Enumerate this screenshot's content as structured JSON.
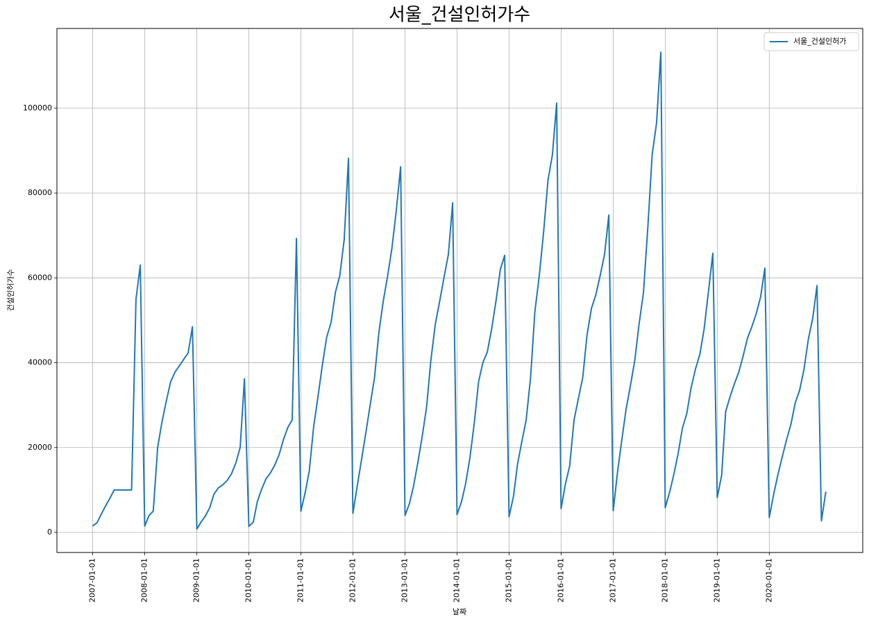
{
  "chart_data": {
    "type": "line",
    "title": "서울_건설인허가수",
    "x_label": "날짜",
    "y_label": "건설인허가수",
    "x": [
      "2007-01-01",
      "2007-02-01",
      "2007-03-01",
      "2007-04-01",
      "2007-05-01",
      "2007-06-01",
      "2007-07-01",
      "2007-08-01",
      "2007-09-01",
      "2007-10-01",
      "2007-11-01",
      "2007-12-01",
      "2008-01-01",
      "2008-02-01",
      "2008-03-01",
      "2008-04-01",
      "2008-05-01",
      "2008-06-01",
      "2008-07-01",
      "2008-08-01",
      "2008-09-01",
      "2008-10-01",
      "2008-11-01",
      "2008-12-01",
      "2009-01-01",
      "2009-02-01",
      "2009-03-01",
      "2009-04-01",
      "2009-05-01",
      "2009-06-01",
      "2009-07-01",
      "2009-08-01",
      "2009-09-01",
      "2009-10-01",
      "2009-11-01",
      "2009-12-01",
      "2010-01-01",
      "2010-02-01",
      "2010-03-01",
      "2010-04-01",
      "2010-05-01",
      "2010-06-01",
      "2010-07-01",
      "2010-08-01",
      "2010-09-01",
      "2010-10-01",
      "2010-11-01",
      "2010-12-01",
      "2011-01-01",
      "2011-02-01",
      "2011-03-01",
      "2011-04-01",
      "2011-05-01",
      "2011-06-01",
      "2011-07-01",
      "2011-08-01",
      "2011-09-01",
      "2011-10-01",
      "2011-11-01",
      "2011-12-01",
      "2012-01-01",
      "2012-02-01",
      "2012-03-01",
      "2012-04-01",
      "2012-05-01",
      "2012-06-01",
      "2012-07-01",
      "2012-08-01",
      "2012-09-01",
      "2012-10-01",
      "2012-11-01",
      "2012-12-01",
      "2013-01-01",
      "2013-02-01",
      "2013-03-01",
      "2013-04-01",
      "2013-05-01",
      "2013-06-01",
      "2013-07-01",
      "2013-08-01",
      "2013-09-01",
      "2013-10-01",
      "2013-11-01",
      "2013-12-01",
      "2014-01-01",
      "2014-02-01",
      "2014-03-01",
      "2014-04-01",
      "2014-05-01",
      "2014-06-01",
      "2014-07-01",
      "2014-08-01",
      "2014-09-01",
      "2014-10-01",
      "2014-11-01",
      "2014-12-01",
      "2015-01-01",
      "2015-02-01",
      "2015-03-01",
      "2015-04-01",
      "2015-05-01",
      "2015-06-01",
      "2015-07-01",
      "2015-08-01",
      "2015-09-01",
      "2015-10-01",
      "2015-11-01",
      "2015-12-01",
      "2016-01-01",
      "2016-02-01",
      "2016-03-01",
      "2016-04-01",
      "2016-05-01",
      "2016-06-01",
      "2016-07-01",
      "2016-08-01",
      "2016-09-01",
      "2016-10-01",
      "2016-11-01",
      "2016-12-01",
      "2017-01-01",
      "2017-02-01",
      "2017-03-01",
      "2017-04-01",
      "2017-05-01",
      "2017-06-01",
      "2017-07-01",
      "2017-08-01",
      "2017-09-01",
      "2017-10-01",
      "2017-11-01",
      "2017-12-01",
      "2018-01-01",
      "2018-02-01",
      "2018-03-01",
      "2018-04-01",
      "2018-05-01",
      "2018-06-01",
      "2018-07-01",
      "2018-08-01",
      "2018-09-01",
      "2018-10-01",
      "2018-11-01",
      "2018-12-01",
      "2019-01-01",
      "2019-02-01",
      "2019-03-01",
      "2019-04-01",
      "2019-05-01",
      "2019-06-01",
      "2019-07-01",
      "2019-08-01",
      "2019-09-01",
      "2019-10-01",
      "2019-11-01",
      "2019-12-01",
      "2020-01-01",
      "2020-02-01",
      "2020-03-01",
      "2020-04-01",
      "2020-05-01",
      "2020-06-01",
      "2020-07-01",
      "2020-08-01",
      "2020-09-01",
      "2020-10-01",
      "2020-11-01",
      "2020-12-01",
      "2021-01-01",
      "2021-02-01"
    ],
    "series": [
      {
        "name": "서울_건설인허가",
        "color": "#1f77b4",
        "values": [
          1500,
          2300,
          4200,
          6200,
          8000,
          10000,
          10000,
          10000,
          10000,
          10000,
          55000,
          63000,
          1500,
          4000,
          5000,
          20000,
          26000,
          31000,
          35500,
          37800,
          39300,
          40800,
          42300,
          48500,
          800,
          2500,
          3800,
          5800,
          9000,
          10500,
          11200,
          12200,
          13800,
          16300,
          20000,
          36200,
          1400,
          2400,
          7200,
          10200,
          12600,
          14000,
          15800,
          18300,
          21900,
          24700,
          26500,
          69300,
          5000,
          9500,
          14500,
          25000,
          32000,
          39500,
          46000,
          49500,
          56700,
          60500,
          69000,
          88200,
          4500,
          11000,
          17000,
          23500,
          30000,
          36500,
          47000,
          54500,
          60500,
          67000,
          76000,
          86200,
          4000,
          6800,
          10800,
          16500,
          22500,
          29500,
          40500,
          49000,
          54500,
          60000,
          65500,
          77700,
          4200,
          7200,
          11300,
          17500,
          25500,
          35500,
          40000,
          42500,
          48000,
          54500,
          62000,
          65300,
          3700,
          8500,
          16000,
          21500,
          26500,
          36500,
          52000,
          60500,
          71000,
          83000,
          89000,
          101200,
          5600,
          11500,
          15600,
          26500,
          31500,
          36500,
          46500,
          52800,
          56000,
          60500,
          65500,
          74800,
          5100,
          14500,
          21500,
          29000,
          34500,
          40500,
          49000,
          56500,
          72000,
          89000,
          96500,
          113200,
          5800,
          9500,
          13500,
          18500,
          24500,
          28000,
          34000,
          38500,
          42000,
          48000,
          57000,
          65800,
          8200,
          13500,
          28500,
          32000,
          35000,
          37800,
          41500,
          45800,
          48500,
          51500,
          55500,
          62300,
          3500,
          9000,
          13500,
          17800,
          21800,
          25500,
          30500,
          33500,
          38500,
          45500,
          50500,
          58200,
          2700,
          9600
        ]
      }
    ],
    "xlim": [
      "2006-04-25",
      "2021-10-18"
    ],
    "xticks": [
      "2007-01-01",
      "2008-01-01",
      "2009-01-01",
      "2010-01-01",
      "2011-01-01",
      "2012-01-01",
      "2013-01-01",
      "2014-01-01",
      "2015-01-01",
      "2016-01-01",
      "2017-01-01",
      "2018-01-01",
      "2019-01-01",
      "2020-01-01"
    ],
    "ylim": [
      -4750,
      118800
    ],
    "yticks": [
      0,
      20000,
      40000,
      60000,
      80000,
      100000
    ],
    "grid": true,
    "legend": "upper right"
  }
}
